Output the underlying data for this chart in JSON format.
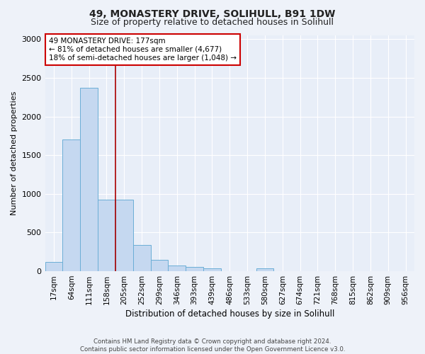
{
  "title_line1": "49, MONASTERY DRIVE, SOLIHULL, B91 1DW",
  "title_line2": "Size of property relative to detached houses in Solihull",
  "xlabel": "Distribution of detached houses by size in Solihull",
  "ylabel": "Number of detached properties",
  "bar_labels": [
    "17sqm",
    "64sqm",
    "111sqm",
    "158sqm",
    "205sqm",
    "252sqm",
    "299sqm",
    "346sqm",
    "393sqm",
    "439sqm",
    "486sqm",
    "533sqm",
    "580sqm",
    "627sqm",
    "674sqm",
    "721sqm",
    "768sqm",
    "815sqm",
    "862sqm",
    "909sqm",
    "956sqm"
  ],
  "bar_values": [
    120,
    1700,
    2375,
    930,
    930,
    340,
    150,
    75,
    55,
    35,
    0,
    0,
    35,
    0,
    0,
    0,
    0,
    0,
    0,
    0,
    0
  ],
  "bar_color": "#c5d8f0",
  "bar_edge_color": "#6baed6",
  "vline_color": "#aa0000",
  "annotation_text": "49 MONASTERY DRIVE: 177sqm\n← 81% of detached houses are smaller (4,677)\n18% of semi-detached houses are larger (1,048) →",
  "annotation_box_color": "#ffffff",
  "annotation_box_edge": "#cc0000",
  "ylim": [
    0,
    3050
  ],
  "yticks": [
    0,
    500,
    1000,
    1500,
    2000,
    2500,
    3000
  ],
  "footer_line1": "Contains HM Land Registry data © Crown copyright and database right 2024.",
  "footer_line2": "Contains public sector information licensed under the Open Government Licence v3.0.",
  "bg_color": "#eef2f9",
  "plot_bg_color": "#e8eef8",
  "grid_color": "#ffffff",
  "title1_fontsize": 10,
  "title2_fontsize": 9
}
